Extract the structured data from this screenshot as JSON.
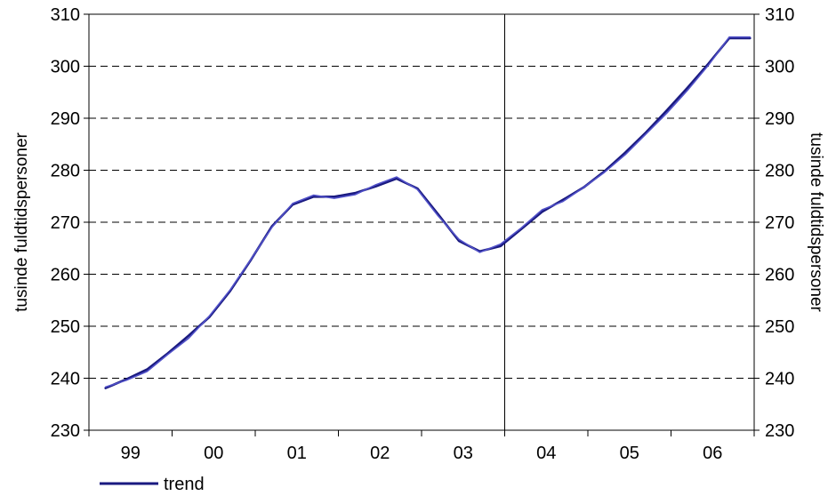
{
  "chart_data": {
    "type": "line",
    "categories": [
      "99",
      "00",
      "01",
      "02",
      "03",
      "04",
      "05",
      "06"
    ],
    "ylabel": "tusinde fuldtidspersoner",
    "ylabel_right": "tusinde fuldtidspersoner",
    "ylim": [
      230,
      310
    ],
    "yticks": [
      230,
      240,
      250,
      260,
      270,
      280,
      290,
      300,
      310
    ],
    "grid": "horizontal dashed",
    "vertical_marker_after": "03",
    "legend": {
      "position": "bottom-left",
      "entries": [
        "trend"
      ]
    },
    "colors": {
      "trend": "#1a1a80",
      "actual": "#5050c8"
    },
    "series": [
      {
        "name": "trend",
        "x": [
          0.2,
          0.45,
          0.7,
          0.95,
          1.2,
          1.45,
          1.7,
          1.95,
          2.2,
          2.45,
          2.7,
          2.95,
          3.2,
          3.45,
          3.7,
          3.95,
          4.2,
          4.45,
          4.7,
          4.95,
          5.2,
          5.45,
          5.7,
          5.95,
          6.2,
          6.45,
          6.7,
          6.95,
          7.2,
          7.45,
          7.7,
          7.95
        ],
        "values": [
          238.1,
          239.8,
          241.7,
          244.8,
          248.2,
          251.8,
          256.8,
          262.8,
          269.2,
          273.4,
          274.9,
          274.9,
          275.6,
          276.9,
          278.4,
          276.5,
          271.5,
          266.4,
          264.4,
          265.4,
          268.7,
          272.0,
          274.3,
          276.7,
          279.8,
          283.4,
          287.3,
          291.5,
          295.9,
          300.5,
          305.4,
          305.4
        ]
      },
      {
        "name": "",
        "x": [
          0.2,
          0.45,
          0.7,
          0.95,
          1.2,
          1.45,
          1.7,
          1.95,
          2.2,
          2.45,
          2.7,
          2.95,
          3.2,
          3.45,
          3.7,
          3.95,
          4.2,
          4.45,
          4.7,
          4.95,
          5.2,
          5.45,
          5.7,
          5.95,
          6.2,
          6.45,
          6.7,
          6.95,
          7.2,
          7.45,
          7.7,
          7.95
        ],
        "values": [
          238.3,
          239.6,
          241.3,
          244.6,
          247.7,
          252.0,
          257.0,
          262.9,
          269.0,
          273.6,
          275.2,
          274.6,
          275.3,
          277.2,
          278.7,
          276.3,
          271.2,
          266.7,
          264.2,
          265.8,
          268.9,
          272.4,
          274.0,
          276.7,
          279.6,
          283.0,
          287.0,
          291.0,
          295.4,
          300.2,
          305.6,
          305.6
        ]
      }
    ]
  }
}
